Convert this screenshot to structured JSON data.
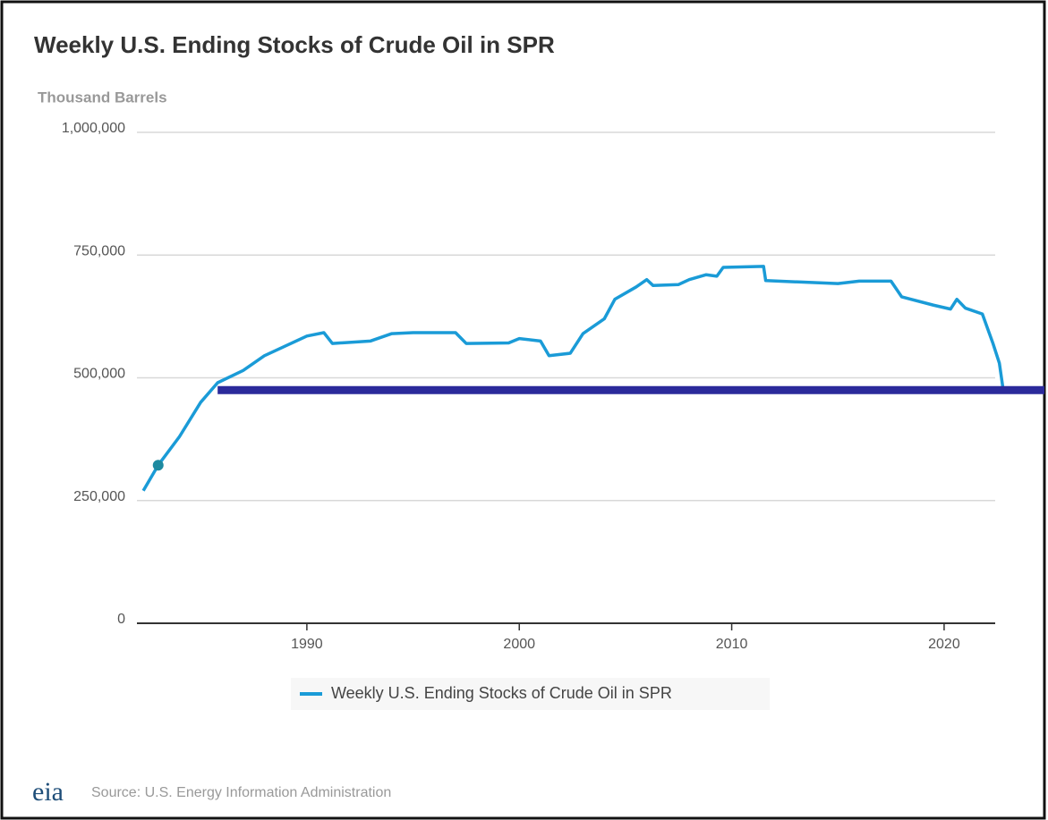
{
  "chart_data": {
    "type": "line",
    "title": "Weekly U.S. Ending Stocks of Crude Oil in SPR",
    "y_label": "Thousand Barrels",
    "x": [
      1982.3,
      1983,
      1984,
      1985,
      1985.8,
      1987,
      1988,
      1989,
      1990,
      1990.8,
      1991.2,
      1993,
      1994,
      1995,
      1997,
      1997.5,
      1999.5,
      2000,
      2001,
      2001.4,
      2002.4,
      2003,
      2004,
      2004.5,
      2005.5,
      2006,
      2006.3,
      2007.5,
      2008,
      2008.8,
      2009.3,
      2009.6,
      2011.5,
      2011.6,
      2015,
      2016,
      2017.5,
      2018,
      2019.5,
      2020.3,
      2020.6,
      2021,
      2021.8,
      2022.3,
      2022.6,
      2022.8
    ],
    "series": [
      {
        "name": "Weekly U.S. Ending Stocks of Crude Oil in SPR",
        "color": "#1a9bd7",
        "values": [
          270000,
          322000,
          380000,
          450000,
          490000,
          515000,
          545000,
          565000,
          585000,
          592000,
          570000,
          575000,
          590000,
          592000,
          592000,
          570000,
          571000,
          580000,
          575000,
          545000,
          550000,
          590000,
          620000,
          660000,
          685000,
          700000,
          688000,
          690000,
          700000,
          710000,
          707000,
          725000,
          727000,
          698000,
          692000,
          697000,
          697000,
          665000,
          648000,
          640000,
          660000,
          642000,
          630000,
          570000,
          530000,
          470000
        ]
      }
    ],
    "xlim": [
      1982,
      2023.5
    ],
    "xticks": [
      1990,
      2000,
      2010,
      2020
    ],
    "ylim": [
      0,
      1000000
    ],
    "yticks": [
      0,
      {
        "value": 250000,
        "label": "250,000"
      },
      {
        "value": 500000,
        "label": "500,000"
      },
      {
        "value": 750000,
        "label": "750,000"
      },
      {
        "value": 1000000,
        "label": "1,000,000"
      }
    ],
    "grid": true,
    "legend": "bottom",
    "reference_line": {
      "value": 475000,
      "x_start": 1985.8,
      "color": "#2b2a9b"
    },
    "highlight_point": {
      "x": 1983,
      "y": 322000,
      "color": "#1e8aa0"
    },
    "logo": "eia",
    "source": "Source: U.S. Energy Information Administration"
  }
}
